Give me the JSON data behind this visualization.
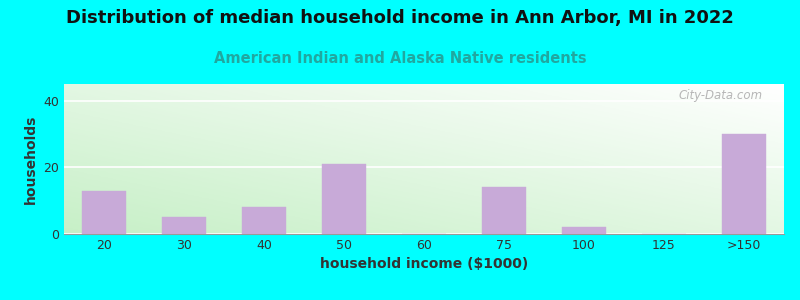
{
  "title": "Distribution of median household income in Ann Arbor, MI in 2022",
  "subtitle": "American Indian and Alaska Native residents",
  "xlabel": "household income ($1000)",
  "ylabel": "households",
  "background_color": "#00FFFF",
  "bar_color": "#c8aad8",
  "bar_edge_color": "#c8aad8",
  "categories": [
    "20",
    "30",
    "40",
    "50",
    "60",
    "75",
    "100",
    "125",
    ">150"
  ],
  "values": [
    13,
    5,
    8,
    21,
    0,
    14,
    2,
    0,
    30
  ],
  "ylim": [
    0,
    45
  ],
  "yticks": [
    0,
    20,
    40
  ],
  "title_fontsize": 13,
  "subtitle_fontsize": 10.5,
  "axis_label_fontsize": 10,
  "tick_fontsize": 9,
  "watermark_text": "City-Data.com",
  "watermark_color": "#aaaaaa",
  "gradient_left_bottom": "#c8e8c8",
  "gradient_right_top": "#ffffff"
}
